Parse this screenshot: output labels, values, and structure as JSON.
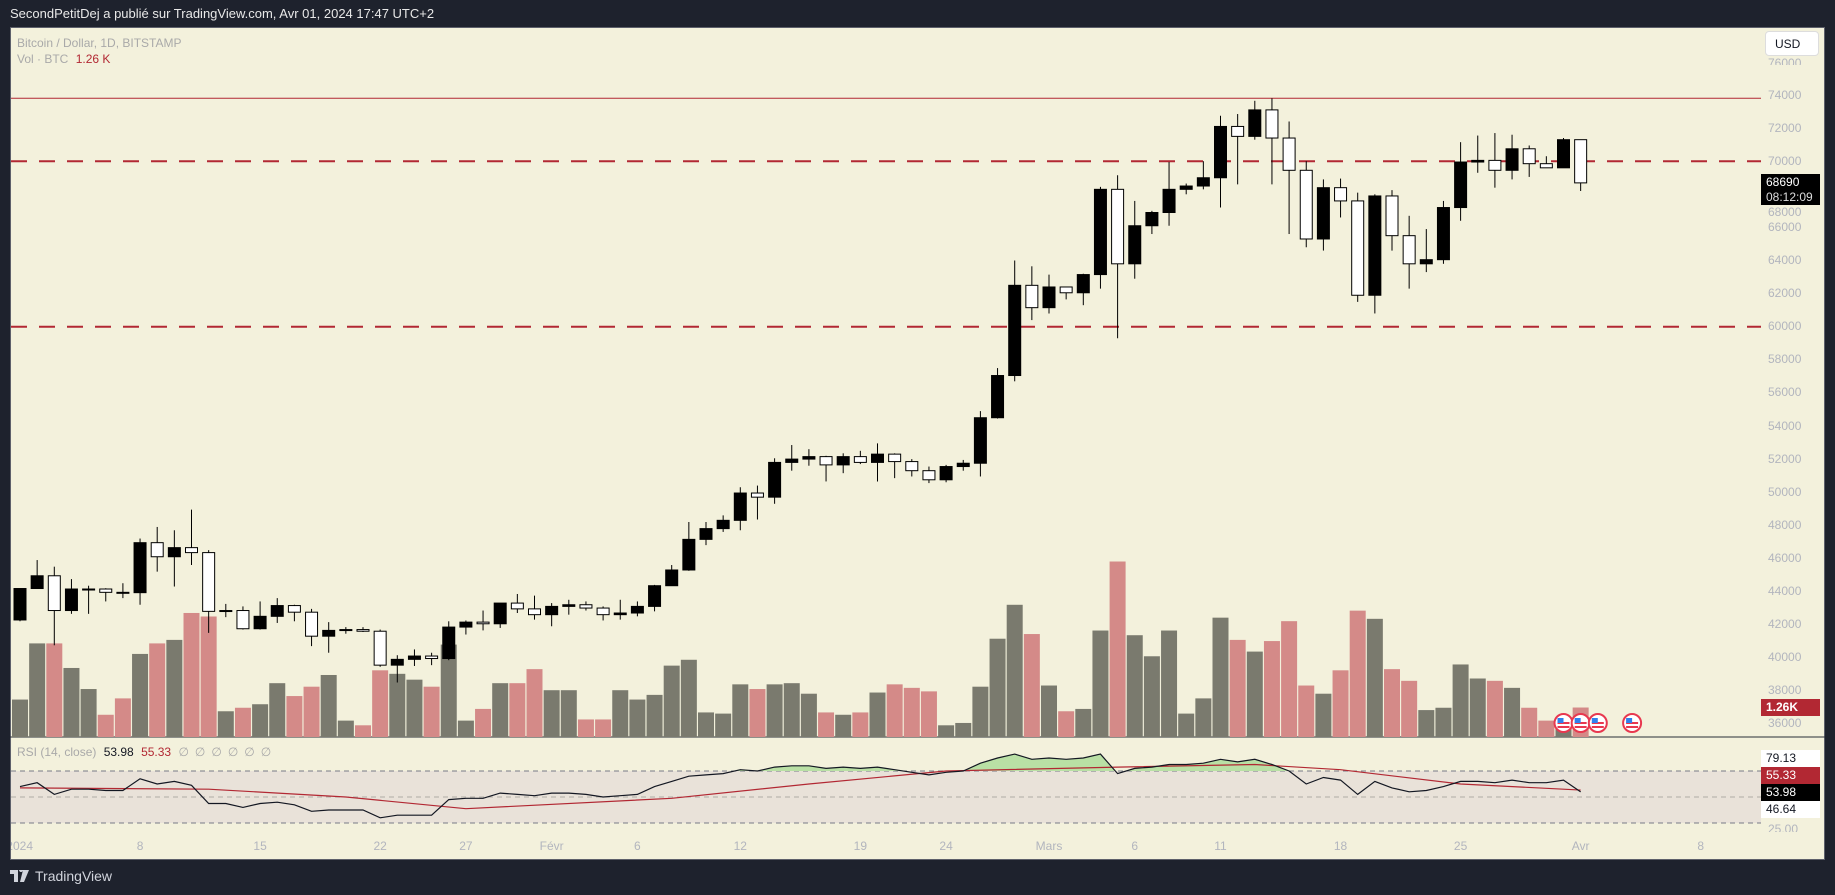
{
  "header": {
    "published": "SecondPetitDej a publié sur TradingView.com, Avr 01, 2024 17:47 UTC+2"
  },
  "legend": {
    "symbol": "Bitcoin / Dollar, 1D, BITSTAMP",
    "vol_label": "Vol · BTC",
    "vol_value": "1.26 K",
    "rsi_label": "RSI (14, close)",
    "rsi_value": "53.98",
    "rsi_ma_value": "55.33",
    "rsi_empty": [
      "∅",
      "∅",
      "∅",
      "∅",
      "∅",
      "∅"
    ]
  },
  "currency_button": "USD",
  "price_axis": [
    "76000",
    "74000",
    "72000",
    "70000",
    "68000",
    "66000",
    "64000",
    "62000",
    "60000",
    "58000",
    "56000",
    "54000",
    "52000",
    "50000",
    "48000",
    "46000",
    "44000",
    "42000",
    "40000",
    "38000",
    "36000"
  ],
  "last_price": {
    "price": "68690",
    "countdown": "08:12:09"
  },
  "volume_tag": "1.26K",
  "rsi_axis": {
    "upper": "79.13",
    "ma": "55.33",
    "rsi": "53.98",
    "lower": "46.64",
    "bottom": "25.00"
  },
  "time_axis": [
    {
      "label": "2024",
      "date": "2024-01-01"
    },
    {
      "label": "8",
      "date": "2024-01-08"
    },
    {
      "label": "15",
      "date": "2024-01-15"
    },
    {
      "label": "22",
      "date": "2024-01-22"
    },
    {
      "label": "27",
      "date": "2024-01-27"
    },
    {
      "label": "Févr",
      "date": "2024-02-01"
    },
    {
      "label": "6",
      "date": "2024-02-06"
    },
    {
      "label": "12",
      "date": "2024-02-12"
    },
    {
      "label": "19",
      "date": "2024-02-19"
    },
    {
      "label": "24",
      "date": "2024-02-24"
    },
    {
      "label": "Mars",
      "date": "2024-03-01"
    },
    {
      "label": "6",
      "date": "2024-03-06"
    },
    {
      "label": "11",
      "date": "2024-03-11"
    },
    {
      "label": "18",
      "date": "2024-03-18"
    },
    {
      "label": "25",
      "date": "2024-03-25"
    },
    {
      "label": "Avr",
      "date": "2024-04-01"
    },
    {
      "label": "8",
      "date": "2024-04-08"
    }
  ],
  "footer": {
    "brand": "TradingView"
  },
  "colors": {
    "background": "#f3f1dc",
    "up_candle": "#000000",
    "down_candle": "#ffffff",
    "vol_up": "#7a7a6e",
    "vol_down": "#d48a88",
    "level_line": "#b22833",
    "rsi_line": "#131722",
    "rsi_ma": "#b22833",
    "rsi_band": "#e9e2d9",
    "rsi_overbought_fill": "#b9e0a5"
  },
  "chart_data": {
    "type": "candlestick",
    "title": "Bitcoin / Dollar, 1D, BITSTAMP",
    "ylim": [
      35000,
      77000
    ],
    "horizontal_levels": [
      {
        "price": 73800,
        "style": "solid"
      },
      {
        "price": 70000,
        "style": "dashed"
      },
      {
        "price": 60000,
        "style": "dashed"
      }
    ],
    "rsi_levels": [
      70,
      50,
      30
    ],
    "events": [
      "2024-03-31",
      "2024-04-01",
      "2024-04-02",
      "2024-04-04"
    ],
    "candles": [
      {
        "d": "2024-01-01",
        "o": 42280,
        "h": 44180,
        "l": 42200,
        "c": 44180,
        "v": 1.6,
        "rsi": 58
      },
      {
        "d": "2024-01-02",
        "o": 44180,
        "h": 45900,
        "l": 44200,
        "c": 44950,
        "v": 4.0,
        "rsi": 61
      },
      {
        "d": "2024-01-03",
        "o": 44950,
        "h": 45500,
        "l": 40750,
        "c": 42850,
        "v": 4.0,
        "rsi": 52
      },
      {
        "d": "2024-01-04",
        "o": 42850,
        "h": 44750,
        "l": 42650,
        "c": 44150,
        "v": 2.95,
        "rsi": 56
      },
      {
        "d": "2024-01-05",
        "o": 44150,
        "h": 44350,
        "l": 42650,
        "c": 44150,
        "v": 2.05,
        "rsi": 56
      },
      {
        "d": "2024-01-06",
        "o": 44150,
        "h": 44200,
        "l": 43400,
        "c": 43950,
        "v": 0.95,
        "rsi": 55
      },
      {
        "d": "2024-01-07",
        "o": 43950,
        "h": 44500,
        "l": 43600,
        "c": 43930,
        "v": 1.65,
        "rsi": 55
      },
      {
        "d": "2024-01-08",
        "o": 43930,
        "h": 47200,
        "l": 43200,
        "c": 46950,
        "v": 3.55,
        "rsi": 64
      },
      {
        "d": "2024-01-09",
        "o": 46950,
        "h": 47900,
        "l": 45200,
        "c": 46100,
        "v": 4.0,
        "rsi": 60
      },
      {
        "d": "2024-01-10",
        "o": 46100,
        "h": 47700,
        "l": 44300,
        "c": 46650,
        "v": 4.15,
        "rsi": 62
      },
      {
        "d": "2024-01-11",
        "o": 46650,
        "h": 48950,
        "l": 45600,
        "c": 46350,
        "v": 5.3,
        "rsi": 59
      },
      {
        "d": "2024-01-12",
        "o": 46350,
        "h": 46500,
        "l": 41500,
        "c": 42800,
        "v": 5.15,
        "rsi": 45
      },
      {
        "d": "2024-01-13",
        "o": 42800,
        "h": 43250,
        "l": 42450,
        "c": 42850,
        "v": 1.1,
        "rsi": 45
      },
      {
        "d": "2024-01-14",
        "o": 42850,
        "h": 43100,
        "l": 41700,
        "c": 41750,
        "v": 1.25,
        "rsi": 42
      },
      {
        "d": "2024-01-15",
        "o": 41750,
        "h": 43400,
        "l": 41700,
        "c": 42500,
        "v": 1.4,
        "rsi": 45
      },
      {
        "d": "2024-01-16",
        "o": 42500,
        "h": 43600,
        "l": 42100,
        "c": 43150,
        "v": 2.3,
        "rsi": 46
      },
      {
        "d": "2024-01-17",
        "o": 43150,
        "h": 43200,
        "l": 42200,
        "c": 42750,
        "v": 1.75,
        "rsi": 44
      },
      {
        "d": "2024-01-18",
        "o": 42750,
        "h": 42950,
        "l": 40700,
        "c": 41300,
        "v": 2.15,
        "rsi": 39
      },
      {
        "d": "2024-01-19",
        "o": 41300,
        "h": 42150,
        "l": 40300,
        "c": 41650,
        "v": 2.65,
        "rsi": 40
      },
      {
        "d": "2024-01-20",
        "o": 41650,
        "h": 41850,
        "l": 41450,
        "c": 41700,
        "v": 0.7,
        "rsi": 40
      },
      {
        "d": "2024-01-21",
        "o": 41700,
        "h": 41850,
        "l": 41550,
        "c": 41600,
        "v": 0.5,
        "rsi": 40
      },
      {
        "d": "2024-01-22",
        "o": 41600,
        "h": 41700,
        "l": 39450,
        "c": 39550,
        "v": 2.85,
        "rsi": 34
      },
      {
        "d": "2024-01-23",
        "o": 39550,
        "h": 40150,
        "l": 38500,
        "c": 39900,
        "v": 2.7,
        "rsi": 36
      },
      {
        "d": "2024-01-24",
        "o": 39900,
        "h": 40500,
        "l": 39500,
        "c": 40100,
        "v": 2.45,
        "rsi": 36
      },
      {
        "d": "2024-01-25",
        "o": 40100,
        "h": 40300,
        "l": 39550,
        "c": 39950,
        "v": 2.15,
        "rsi": 36
      },
      {
        "d": "2024-01-26",
        "o": 39950,
        "h": 42200,
        "l": 39850,
        "c": 41850,
        "v": 3.95,
        "rsi": 48
      },
      {
        "d": "2024-01-27",
        "o": 41850,
        "h": 42250,
        "l": 41400,
        "c": 42150,
        "v": 0.7,
        "rsi": 49
      },
      {
        "d": "2024-01-28",
        "o": 42150,
        "h": 42850,
        "l": 41650,
        "c": 42050,
        "v": 1.2,
        "rsi": 49
      },
      {
        "d": "2024-01-29",
        "o": 42050,
        "h": 43300,
        "l": 41800,
        "c": 43300,
        "v": 2.3,
        "rsi": 53
      },
      {
        "d": "2024-01-30",
        "o": 43300,
        "h": 43850,
        "l": 42700,
        "c": 42950,
        "v": 2.3,
        "rsi": 52
      },
      {
        "d": "2024-01-31",
        "o": 42950,
        "h": 43750,
        "l": 42300,
        "c": 42600,
        "v": 2.9,
        "rsi": 51
      },
      {
        "d": "2024-02-01",
        "o": 42600,
        "h": 43300,
        "l": 41900,
        "c": 43100,
        "v": 2.0,
        "rsi": 53
      },
      {
        "d": "2024-02-02",
        "o": 43100,
        "h": 43500,
        "l": 42600,
        "c": 43200,
        "v": 2.0,
        "rsi": 53
      },
      {
        "d": "2024-02-03",
        "o": 43200,
        "h": 43400,
        "l": 42850,
        "c": 43000,
        "v": 0.75,
        "rsi": 52
      },
      {
        "d": "2024-02-04",
        "o": 43000,
        "h": 43100,
        "l": 42250,
        "c": 42600,
        "v": 0.75,
        "rsi": 50
      },
      {
        "d": "2024-02-05",
        "o": 42600,
        "h": 43500,
        "l": 42300,
        "c": 42700,
        "v": 2.0,
        "rsi": 51
      },
      {
        "d": "2024-02-06",
        "o": 42700,
        "h": 43400,
        "l": 42500,
        "c": 43100,
        "v": 1.6,
        "rsi": 52
      },
      {
        "d": "2024-02-07",
        "o": 43100,
        "h": 44400,
        "l": 42800,
        "c": 44350,
        "v": 1.8,
        "rsi": 58
      },
      {
        "d": "2024-02-08",
        "o": 44350,
        "h": 45600,
        "l": 44350,
        "c": 45300,
        "v": 3.05,
        "rsi": 62
      },
      {
        "d": "2024-02-09",
        "o": 45300,
        "h": 48200,
        "l": 45250,
        "c": 47150,
        "v": 3.3,
        "rsi": 66
      },
      {
        "d": "2024-02-10",
        "o": 47150,
        "h": 48200,
        "l": 46800,
        "c": 47800,
        "v": 1.05,
        "rsi": 67
      },
      {
        "d": "2024-02-11",
        "o": 47800,
        "h": 48600,
        "l": 47600,
        "c": 48300,
        "v": 1.0,
        "rsi": 68
      },
      {
        "d": "2024-02-12",
        "o": 48300,
        "h": 50300,
        "l": 47700,
        "c": 49950,
        "v": 2.25,
        "rsi": 71
      },
      {
        "d": "2024-02-13",
        "o": 49950,
        "h": 50400,
        "l": 48350,
        "c": 49700,
        "v": 2.05,
        "rsi": 70
      },
      {
        "d": "2024-02-14",
        "o": 49700,
        "h": 52050,
        "l": 49300,
        "c": 51800,
        "v": 2.25,
        "rsi": 73
      },
      {
        "d": "2024-02-15",
        "o": 51800,
        "h": 52850,
        "l": 51300,
        "c": 52000,
        "v": 2.3,
        "rsi": 74
      },
      {
        "d": "2024-02-16",
        "o": 52000,
        "h": 52600,
        "l": 51600,
        "c": 52150,
        "v": 1.85,
        "rsi": 74
      },
      {
        "d": "2024-02-17",
        "o": 52150,
        "h": 52200,
        "l": 50650,
        "c": 51650,
        "v": 1.05,
        "rsi": 72
      },
      {
        "d": "2024-02-18",
        "o": 51650,
        "h": 52350,
        "l": 51150,
        "c": 52150,
        "v": 0.95,
        "rsi": 73
      },
      {
        "d": "2024-02-19",
        "o": 52150,
        "h": 52500,
        "l": 51700,
        "c": 51800,
        "v": 1.05,
        "rsi": 72
      },
      {
        "d": "2024-02-20",
        "o": 51800,
        "h": 52950,
        "l": 50650,
        "c": 52300,
        "v": 1.9,
        "rsi": 73
      },
      {
        "d": "2024-02-21",
        "o": 52300,
        "h": 52350,
        "l": 50850,
        "c": 51850,
        "v": 2.25,
        "rsi": 71
      },
      {
        "d": "2024-02-22",
        "o": 51850,
        "h": 52000,
        "l": 50950,
        "c": 51300,
        "v": 2.1,
        "rsi": 69
      },
      {
        "d": "2024-02-23",
        "o": 51300,
        "h": 51550,
        "l": 50550,
        "c": 50750,
        "v": 1.95,
        "rsi": 67
      },
      {
        "d": "2024-02-24",
        "o": 50750,
        "h": 51650,
        "l": 50600,
        "c": 51550,
        "v": 0.5,
        "rsi": 69
      },
      {
        "d": "2024-02-25",
        "o": 51550,
        "h": 51950,
        "l": 51300,
        "c": 51750,
        "v": 0.6,
        "rsi": 70
      },
      {
        "d": "2024-02-26",
        "o": 51750,
        "h": 54900,
        "l": 50950,
        "c": 54500,
        "v": 2.15,
        "rsi": 76
      },
      {
        "d": "2024-02-27",
        "o": 54500,
        "h": 57500,
        "l": 54450,
        "c": 57050,
        "v": 4.2,
        "rsi": 80
      },
      {
        "d": "2024-02-28",
        "o": 57050,
        "h": 64000,
        "l": 56700,
        "c": 62500,
        "v": 5.65,
        "rsi": 83
      },
      {
        "d": "2024-02-29",
        "o": 62500,
        "h": 63650,
        "l": 60400,
        "c": 61150,
        "v": 4.4,
        "rsi": 79
      },
      {
        "d": "2024-03-01",
        "o": 61150,
        "h": 63150,
        "l": 60800,
        "c": 62400,
        "v": 2.2,
        "rsi": 80
      },
      {
        "d": "2024-03-02",
        "o": 62400,
        "h": 62400,
        "l": 61650,
        "c": 62050,
        "v": 1.1,
        "rsi": 79
      },
      {
        "d": "2024-03-03",
        "o": 62050,
        "h": 63200,
        "l": 61300,
        "c": 63150,
        "v": 1.2,
        "rsi": 80
      },
      {
        "d": "2024-03-04",
        "o": 63150,
        "h": 68450,
        "l": 62300,
        "c": 68300,
        "v": 4.55,
        "rsi": 83
      },
      {
        "d": "2024-03-05",
        "o": 68300,
        "h": 69150,
        "l": 59300,
        "c": 63800,
        "v": 7.5,
        "rsi": 68
      },
      {
        "d": "2024-03-06",
        "o": 63800,
        "h": 67600,
        "l": 62900,
        "c": 66100,
        "v": 4.35,
        "rsi": 72
      },
      {
        "d": "2024-03-07",
        "o": 66100,
        "h": 67000,
        "l": 65600,
        "c": 66900,
        "v": 3.45,
        "rsi": 73
      },
      {
        "d": "2024-03-08",
        "o": 66900,
        "h": 69950,
        "l": 66100,
        "c": 68300,
        "v": 4.55,
        "rsi": 75
      },
      {
        "d": "2024-03-09",
        "o": 68300,
        "h": 68650,
        "l": 68000,
        "c": 68500,
        "v": 1.0,
        "rsi": 75
      },
      {
        "d": "2024-03-10",
        "o": 68500,
        "h": 70000,
        "l": 68300,
        "c": 69000,
        "v": 1.65,
        "rsi": 76
      },
      {
        "d": "2024-03-11",
        "o": 69000,
        "h": 72750,
        "l": 67200,
        "c": 72100,
        "v": 5.1,
        "rsi": 79
      },
      {
        "d": "2024-03-12",
        "o": 72100,
        "h": 72850,
        "l": 68600,
        "c": 71500,
        "v": 4.15,
        "rsi": 77
      },
      {
        "d": "2024-03-13",
        "o": 71500,
        "h": 73650,
        "l": 71300,
        "c": 73100,
        "v": 3.65,
        "rsi": 79
      },
      {
        "d": "2024-03-14",
        "o": 73100,
        "h": 73800,
        "l": 68600,
        "c": 71400,
        "v": 4.1,
        "rsi": 75
      },
      {
        "d": "2024-03-15",
        "o": 71400,
        "h": 72400,
        "l": 65600,
        "c": 69450,
        "v": 4.95,
        "rsi": 70
      },
      {
        "d": "2024-03-16",
        "o": 69450,
        "h": 70000,
        "l": 64800,
        "c": 65300,
        "v": 2.2,
        "rsi": 60
      },
      {
        "d": "2024-03-17",
        "o": 65300,
        "h": 68900,
        "l": 64600,
        "c": 68400,
        "v": 1.85,
        "rsi": 65
      },
      {
        "d": "2024-03-18",
        "o": 68400,
        "h": 68950,
        "l": 66600,
        "c": 67600,
        "v": 2.85,
        "rsi": 63
      },
      {
        "d": "2024-03-19",
        "o": 67600,
        "h": 68100,
        "l": 61500,
        "c": 61900,
        "v": 5.4,
        "rsi": 52
      },
      {
        "d": "2024-03-20",
        "o": 61900,
        "h": 68000,
        "l": 60800,
        "c": 67900,
        "v": 5.05,
        "rsi": 62
      },
      {
        "d": "2024-03-21",
        "o": 67900,
        "h": 68250,
        "l": 64600,
        "c": 65500,
        "v": 2.9,
        "rsi": 57
      },
      {
        "d": "2024-03-22",
        "o": 65500,
        "h": 66700,
        "l": 62300,
        "c": 63800,
        "v": 2.4,
        "rsi": 54
      },
      {
        "d": "2024-03-23",
        "o": 63800,
        "h": 65900,
        "l": 63300,
        "c": 64050,
        "v": 1.15,
        "rsi": 55
      },
      {
        "d": "2024-03-24",
        "o": 64050,
        "h": 67600,
        "l": 63800,
        "c": 67200,
        "v": 1.25,
        "rsi": 58
      },
      {
        "d": "2024-03-25",
        "o": 67200,
        "h": 71150,
        "l": 66400,
        "c": 69950,
        "v": 3.1,
        "rsi": 62
      },
      {
        "d": "2024-03-26",
        "o": 69950,
        "h": 71550,
        "l": 69300,
        "c": 70050,
        "v": 2.5,
        "rsi": 62
      },
      {
        "d": "2024-03-27",
        "o": 70050,
        "h": 71700,
        "l": 68400,
        "c": 69450,
        "v": 2.4,
        "rsi": 61
      },
      {
        "d": "2024-03-28",
        "o": 69450,
        "h": 71600,
        "l": 68900,
        "c": 70750,
        "v": 2.1,
        "rsi": 63
      },
      {
        "d": "2024-03-29",
        "o": 70750,
        "h": 70950,
        "l": 69050,
        "c": 69850,
        "v": 1.25,
        "rsi": 61
      },
      {
        "d": "2024-03-30",
        "o": 69850,
        "h": 70300,
        "l": 69600,
        "c": 69600,
        "v": 0.7,
        "rsi": 61
      },
      {
        "d": "2024-03-31",
        "o": 69600,
        "h": 71400,
        "l": 69600,
        "c": 71300,
        "v": 0.85,
        "rsi": 63
      },
      {
        "d": "2024-04-01",
        "o": 71300,
        "h": 71300,
        "l": 68200,
        "c": 68690,
        "v": 1.26,
        "rsi": 53.98
      }
    ],
    "rsi_ma": [
      [
        "2024-01-01",
        57
      ],
      [
        "2024-01-12",
        56
      ],
      [
        "2024-01-20",
        50
      ],
      [
        "2024-01-27",
        41
      ],
      [
        "2024-02-08",
        49
      ],
      [
        "2024-02-16",
        60
      ],
      [
        "2024-02-24",
        70
      ],
      [
        "2024-03-05",
        73
      ],
      [
        "2024-03-13",
        75
      ],
      [
        "2024-03-18",
        71
      ],
      [
        "2024-03-25",
        60
      ],
      [
        "2024-04-01",
        55.33
      ]
    ]
  }
}
